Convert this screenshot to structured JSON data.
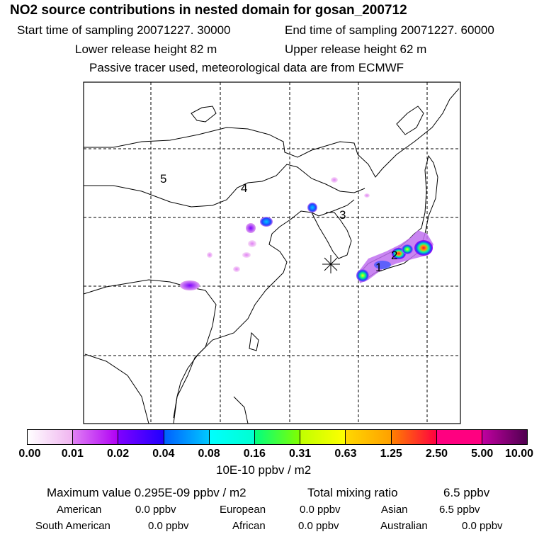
{
  "header": {
    "title": "NO2 source contributions in nested domain for gosan_200712",
    "start_time": "Start time of sampling 20071227. 30000",
    "end_time": "End time of sampling 20071227. 60000",
    "lower_release": "Lower release height   82 m",
    "upper_release": "Upper release height   62 m",
    "note": "Passive tracer used, meteorological data are from ECMWF"
  },
  "map": {
    "region_labels": [
      "5",
      "4",
      "3",
      "2",
      "1"
    ],
    "receptor_icon": "asterisk-star-icon"
  },
  "colorbar": {
    "ticks": [
      "0.00",
      "0.01",
      "0.02",
      "0.04",
      "0.08",
      "0.16",
      "0.31",
      "0.63",
      "1.25",
      "2.50",
      "5.00",
      "10.00"
    ],
    "segments": [
      [
        "#ffffff",
        "#f0b4f0"
      ],
      [
        "#e080f4",
        "#b000f4"
      ],
      [
        "#8000ff",
        "#2000ff"
      ],
      [
        "#0060ff",
        "#00c8ff"
      ],
      [
        "#00ffff",
        "#00ffd0"
      ],
      [
        "#00ff80",
        "#80ff00"
      ],
      [
        "#c0ff00",
        "#ffff00"
      ],
      [
        "#ffd800",
        "#ffa000"
      ],
      [
        "#ff8000",
        "#ff0040"
      ],
      [
        "#ff0080",
        "#ff0080"
      ],
      [
        "#c000a0",
        "#500050"
      ]
    ],
    "unit": "10E-10 ppbv / m2"
  },
  "stats": {
    "max_label": "Maximum value  0.295E-09 ppbv / m2",
    "total_label": "Total mixing ratio",
    "total_value": "6.5 ppbv",
    "american_label": "American",
    "american_value": "0.0 ppbv",
    "european_label": "European",
    "european_value": "0.0 ppbv",
    "asian_label": "Asian",
    "asian_value": "6.5 ppbv",
    "south_american_label": "South American",
    "south_american_value": "0.0 ppbv",
    "african_label": "African",
    "african_value": "0.0 ppbv",
    "australian_label": "Australian",
    "australian_value": "0.0 ppbv"
  }
}
